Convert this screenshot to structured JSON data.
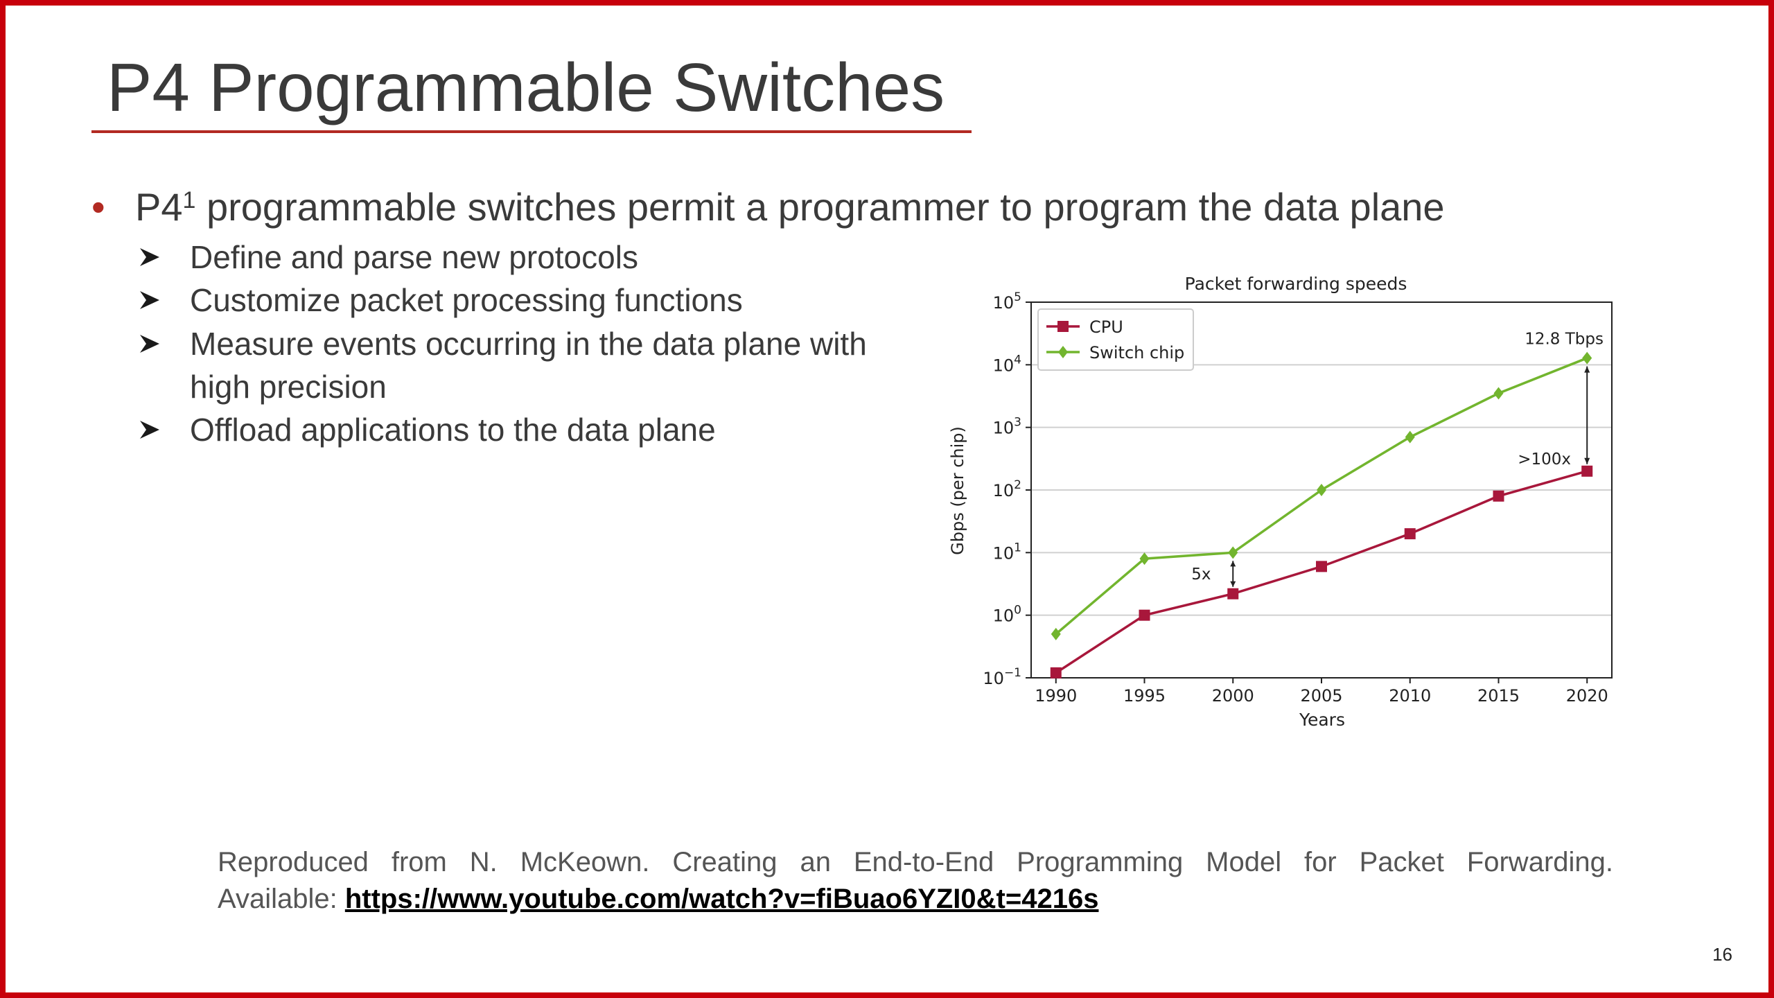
{
  "slide": {
    "title": "P4 Programmable Switches",
    "bullet_prefix": "P4",
    "bullet_sup": "1",
    "bullet_rest": " programmable switches permit a programmer to program the data plane",
    "subitems": [
      "Define and parse new protocols",
      "Customize packet processing functions",
      "Measure events occurring in the data plane with",
      "high precision",
      "Offload applications to the data plane"
    ],
    "footer_text_1": "Reproduced from N. McKeown. Creating an End-to-End Programming Model for Packet Forwarding.",
    "footer_text_2": "Available: ",
    "footer_link": "https://www.youtube.com/watch?v=fiBuao6YZI0&t=4216s",
    "page_number": "16",
    "colors": {
      "accent": "#b22a22",
      "border": "#c8000b",
      "text": "#3a3a3a"
    }
  },
  "chart_data": {
    "type": "line",
    "title": "Packet forwarding speeds",
    "xlabel": "Years",
    "ylabel": "Gbps (per chip)",
    "yscale": "log",
    "x": [
      1990,
      1995,
      2000,
      2005,
      2010,
      2015,
      2020
    ],
    "xlim": [
      1988.6,
      2021.4
    ],
    "ylim": [
      0.1,
      100000
    ],
    "xticks": [
      "1990",
      "1995",
      "2000",
      "2005",
      "2010",
      "2015",
      "2020"
    ],
    "yticks": [
      {
        "base": "10",
        "exp": "5"
      },
      {
        "base": "10",
        "exp": "4"
      },
      {
        "base": "10",
        "exp": "3"
      },
      {
        "base": "10",
        "exp": "2"
      },
      {
        "base": "10",
        "exp": "1"
      },
      {
        "base": "10",
        "exp": "0"
      },
      {
        "base": "10",
        "exp": "−1"
      }
    ],
    "grid": "horizontal",
    "legend_position": "top-left",
    "series": [
      {
        "name": "CPU",
        "color": "#a8173b",
        "marker": "square",
        "values": [
          0.12,
          1.0,
          2.2,
          6.0,
          20,
          80,
          200
        ]
      },
      {
        "name": "Switch chip",
        "color": "#72b52e",
        "marker": "diamond",
        "values": [
          0.5,
          8,
          10,
          100,
          700,
          3500,
          12800
        ]
      }
    ],
    "annotations": [
      {
        "text": "12.8 Tbps"
      },
      {
        "text": ">100x"
      },
      {
        "text": "5x"
      }
    ]
  }
}
